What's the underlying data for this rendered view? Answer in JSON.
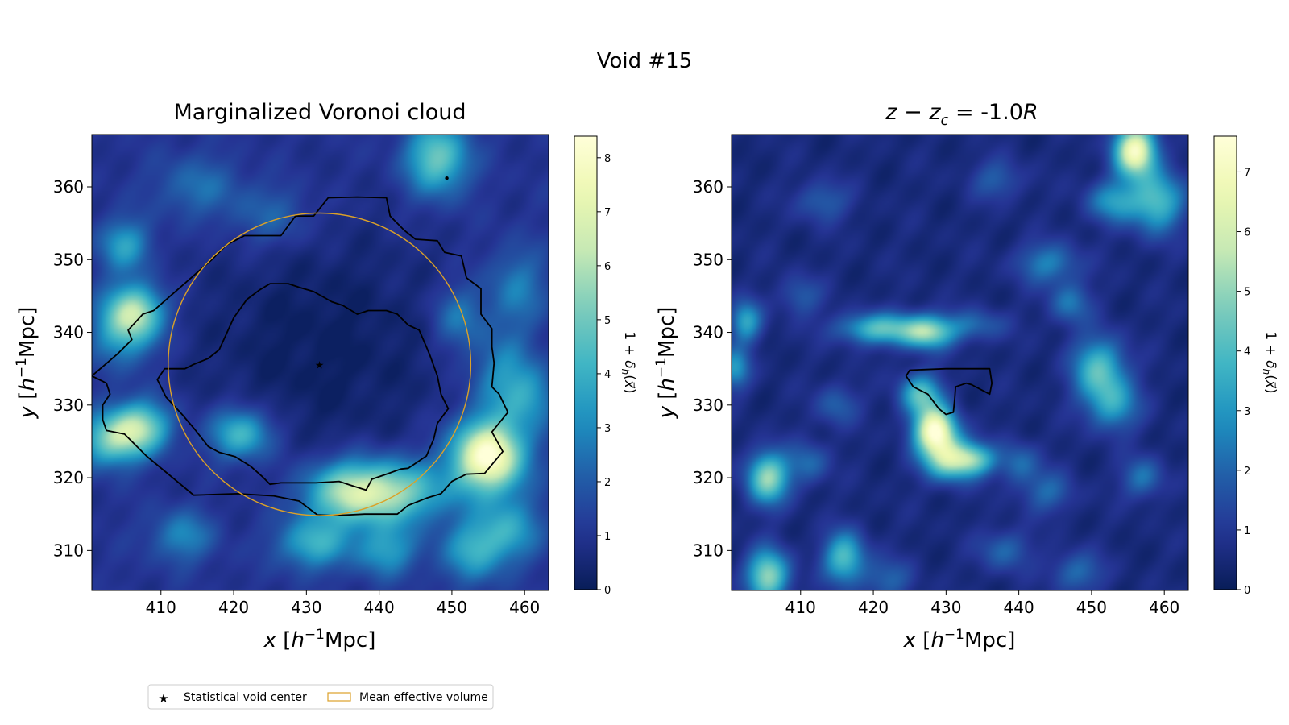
{
  "figure": {
    "suptitle": "Void #15"
  },
  "legend": {
    "star_label": "Statistical void center",
    "circle_label": "Mean effective volume",
    "star_color": "#e8a020",
    "circle_color": "#dba128"
  },
  "colormap": {
    "name": "YlGnBu",
    "stops": [
      "#081d58",
      "#253494",
      "#225ea8",
      "#1d91c0",
      "#41b6c4",
      "#7fcdbb",
      "#c7e9b4",
      "#edf8b1",
      "#ffffd9"
    ]
  },
  "chart_data": [
    {
      "type": "heatmap",
      "title": "Marginalized Voronoi cloud",
      "xlabel": "x [h⁻¹Mpc]",
      "ylabel": "y [h⁻¹Mpc]",
      "xlim": [
        400.5,
        463.3
      ],
      "ylim": [
        304.5,
        367.2
      ],
      "xticks": [
        410,
        420,
        430,
        440,
        450,
        460
      ],
      "yticks": [
        310,
        320,
        330,
        340,
        350,
        360
      ],
      "colorbar": {
        "label": "1 + δh(x⃗)",
        "range": [
          0,
          8.4
        ],
        "ticks": [
          0,
          1,
          2,
          3,
          4,
          5,
          6,
          7,
          8
        ]
      },
      "density_blobs": [
        {
          "x": 455,
          "y": 323,
          "sx": 3.5,
          "sy": 3.5,
          "amp": 7.5
        },
        {
          "x": 436,
          "y": 318,
          "sx": 4.5,
          "sy": 3,
          "amp": 4.5
        },
        {
          "x": 443,
          "y": 318,
          "sx": 5,
          "sy": 3,
          "amp": 3.5
        },
        {
          "x": 407,
          "y": 327,
          "sx": 3,
          "sy": 2.5,
          "amp": 4.5
        },
        {
          "x": 403,
          "y": 325,
          "sx": 3,
          "sy": 2.5,
          "amp": 3.5
        },
        {
          "x": 421,
          "y": 326,
          "sx": 3,
          "sy": 2.5,
          "amp": 3.5
        },
        {
          "x": 405,
          "y": 341,
          "sx": 3,
          "sy": 3.5,
          "amp": 3.5
        },
        {
          "x": 407,
          "y": 343,
          "sx": 2.5,
          "sy": 2.5,
          "amp": 3.0
        },
        {
          "x": 448,
          "y": 364,
          "sx": 3,
          "sy": 3.5,
          "amp": 4.0
        },
        {
          "x": 405,
          "y": 352,
          "sx": 2.5,
          "sy": 2.5,
          "amp": 2.6
        },
        {
          "x": 431,
          "y": 311,
          "sx": 3.5,
          "sy": 2.5,
          "amp": 3.0
        },
        {
          "x": 441,
          "y": 310,
          "sx": 3,
          "sy": 2.5,
          "amp": 2.5
        },
        {
          "x": 453,
          "y": 310,
          "sx": 3,
          "sy": 3,
          "amp": 2.8
        },
        {
          "x": 458,
          "y": 313,
          "sx": 3,
          "sy": 3,
          "amp": 2.5
        },
        {
          "x": 413,
          "y": 312,
          "sx": 3,
          "sy": 2.5,
          "amp": 2.0
        },
        {
          "x": 451,
          "y": 342,
          "sx": 2.5,
          "sy": 3,
          "amp": 1.8
        },
        {
          "x": 459,
          "y": 346,
          "sx": 3,
          "sy": 4,
          "amp": 1.8
        },
        {
          "x": 415,
          "y": 360,
          "sx": 4,
          "sy": 3,
          "amp": 1.5
        },
        {
          "x": 425,
          "y": 356,
          "sx": 4,
          "sy": 3,
          "amp": 1.3
        },
        {
          "x": 457,
          "y": 334,
          "sx": 3,
          "sy": 4,
          "amp": 2.2
        },
        {
          "x": 461,
          "y": 331,
          "sx": 2.5,
          "sy": 3,
          "amp": 2.0
        }
      ],
      "background_level": 1.0,
      "center_depression": {
        "x": 432,
        "y": 338,
        "sx": 13,
        "sy": 12,
        "depth": 0.85
      },
      "contours": [
        [
          [
            400.5,
            334
          ],
          [
            404,
            337
          ],
          [
            406,
            339
          ],
          [
            405.5,
            340.3
          ],
          [
            407.5,
            342.5
          ],
          [
            409,
            343
          ],
          [
            413,
            346.5
          ],
          [
            417,
            350
          ],
          [
            419,
            352
          ],
          [
            421.5,
            353.3
          ],
          [
            426.5,
            353.3
          ],
          [
            428.5,
            356
          ],
          [
            431,
            356
          ],
          [
            433,
            358.5
          ],
          [
            437,
            358.6
          ],
          [
            441,
            358.5
          ],
          [
            441.5,
            356
          ],
          [
            443.5,
            354
          ],
          [
            445,
            352.8
          ],
          [
            448,
            352.6
          ],
          [
            449,
            351
          ],
          [
            451.3,
            350.5
          ],
          [
            452,
            347.5
          ],
          [
            454,
            346
          ],
          [
            454,
            342.5
          ],
          [
            455.5,
            340.5
          ],
          [
            455.5,
            338
          ],
          [
            455.8,
            335.8
          ],
          [
            455.5,
            332.5
          ],
          [
            456.5,
            331.5
          ],
          [
            457.7,
            329
          ],
          [
            455.5,
            326.3
          ],
          [
            457,
            323.6
          ],
          [
            454.5,
            320.6
          ],
          [
            452,
            320.5
          ],
          [
            450,
            319.5
          ],
          [
            448.5,
            317.8
          ],
          [
            446.5,
            317.2
          ],
          [
            444,
            316.2
          ],
          [
            442.5,
            315
          ],
          [
            438,
            315
          ],
          [
            434,
            314.8
          ],
          [
            431.5,
            314.9
          ],
          [
            429,
            316.8
          ],
          [
            425.5,
            317.5
          ],
          [
            420.5,
            317.8
          ],
          [
            414.5,
            317.6
          ],
          [
            408,
            323
          ],
          [
            405,
            326
          ],
          [
            402.5,
            326.5
          ],
          [
            402,
            328
          ],
          [
            402,
            330
          ],
          [
            403,
            331.5
          ],
          [
            402.5,
            333
          ],
          [
            400.5,
            334
          ]
        ],
        [
          [
            420,
            342
          ],
          [
            421.8,
            344.5
          ],
          [
            423.5,
            345.8
          ],
          [
            425,
            346.7
          ],
          [
            427.5,
            346.7
          ],
          [
            429,
            346.2
          ],
          [
            431,
            345.6
          ],
          [
            433.5,
            344.2
          ],
          [
            435,
            343.7
          ],
          [
            437,
            342.5
          ],
          [
            438.5,
            343
          ],
          [
            441,
            343
          ],
          [
            442.5,
            342.5
          ],
          [
            444,
            341
          ],
          [
            445.5,
            340.3
          ],
          [
            446.5,
            338
          ],
          [
            447,
            336.8
          ],
          [
            448,
            334
          ],
          [
            448.5,
            331.5
          ],
          [
            449.5,
            329.5
          ],
          [
            448,
            327.5
          ],
          [
            447.5,
            325.3
          ],
          [
            446.5,
            323
          ],
          [
            444,
            321.3
          ],
          [
            443,
            321.2
          ],
          [
            441,
            320.5
          ],
          [
            439,
            319.8
          ],
          [
            438.2,
            318.3
          ],
          [
            436,
            319
          ],
          [
            434.5,
            319.5
          ],
          [
            431.3,
            319.3
          ],
          [
            429,
            319.3
          ],
          [
            426.5,
            319.3
          ],
          [
            425,
            319.1
          ],
          [
            424,
            320.1
          ],
          [
            422.3,
            321.6
          ],
          [
            420.2,
            322.9
          ],
          [
            418,
            323.5
          ],
          [
            416.5,
            324.3
          ],
          [
            414.7,
            326.6
          ],
          [
            413,
            328.6
          ],
          [
            410.7,
            331.1
          ],
          [
            409.5,
            333.5
          ],
          [
            410.5,
            335
          ],
          [
            413.3,
            335
          ],
          [
            414.5,
            335.6
          ],
          [
            416.5,
            336.4
          ],
          [
            418,
            337.6
          ],
          [
            420,
            342
          ]
        ]
      ],
      "circle": {
        "x": 431.8,
        "y": 335.6,
        "r": 20.8
      },
      "star": {
        "x": 431.8,
        "y": 335.6
      },
      "dot": {
        "x": 449.3,
        "y": 361.2
      }
    },
    {
      "type": "heatmap",
      "title": "z − z_c = -1.0R",
      "xlabel": "x [h⁻¹Mpc]",
      "ylabel": "y [h⁻¹Mpc]",
      "xlim": [
        400.5,
        463.3
      ],
      "ylim": [
        304.5,
        367.2
      ],
      "xticks": [
        410,
        420,
        430,
        440,
        450,
        460
      ],
      "yticks": [
        310,
        320,
        330,
        340,
        350,
        360
      ],
      "colorbar": {
        "label": "1 + δh(x⃗)",
        "range": [
          0,
          7.6
        ],
        "ticks": [
          0,
          1,
          2,
          3,
          4,
          5,
          6,
          7
        ]
      },
      "density_blobs": [
        {
          "x": 428.5,
          "y": 326.5,
          "sx": 2,
          "sy": 2.2,
          "amp": 6.8
        },
        {
          "x": 430.5,
          "y": 322.5,
          "sx": 2.5,
          "sy": 2,
          "amp": 4.5
        },
        {
          "x": 426.5,
          "y": 331.5,
          "sx": 2,
          "sy": 2,
          "amp": 3.5
        },
        {
          "x": 434,
          "y": 322.5,
          "sx": 2,
          "sy": 1.5,
          "amp": 3.0
        },
        {
          "x": 421,
          "y": 340.5,
          "sx": 4,
          "sy": 1.5,
          "amp": 3.5
        },
        {
          "x": 427.5,
          "y": 340,
          "sx": 2.5,
          "sy": 1.6,
          "amp": 4.0
        },
        {
          "x": 434,
          "y": 341,
          "sx": 3,
          "sy": 1.5,
          "amp": 1.5
        },
        {
          "x": 402.5,
          "y": 341.5,
          "sx": 1.5,
          "sy": 2,
          "amp": 2.8
        },
        {
          "x": 401,
          "y": 335,
          "sx": 1.5,
          "sy": 2,
          "amp": 2.5
        },
        {
          "x": 405.5,
          "y": 320,
          "sx": 2,
          "sy": 2.5,
          "amp": 4.5
        },
        {
          "x": 405.5,
          "y": 306.5,
          "sx": 2,
          "sy": 2.5,
          "amp": 4.5
        },
        {
          "x": 416,
          "y": 309,
          "sx": 2,
          "sy": 2.5,
          "amp": 3.5
        },
        {
          "x": 451,
          "y": 335,
          "sx": 2.5,
          "sy": 3,
          "amp": 3.5
        },
        {
          "x": 453,
          "y": 330,
          "sx": 2.5,
          "sy": 2.5,
          "amp": 2.5
        },
        {
          "x": 456,
          "y": 365,
          "sx": 2,
          "sy": 2.5,
          "amp": 6.5
        },
        {
          "x": 459,
          "y": 358,
          "sx": 2.5,
          "sy": 3,
          "amp": 3.5
        },
        {
          "x": 453,
          "y": 358,
          "sx": 2.5,
          "sy": 2,
          "amp": 2.5
        },
        {
          "x": 444,
          "y": 349.5,
          "sx": 3,
          "sy": 2,
          "amp": 2.0
        },
        {
          "x": 447,
          "y": 344,
          "sx": 2,
          "sy": 2,
          "amp": 1.8
        },
        {
          "x": 440,
          "y": 322,
          "sx": 2,
          "sy": 2,
          "amp": 1.6
        },
        {
          "x": 444,
          "y": 318,
          "sx": 2.5,
          "sy": 2,
          "amp": 1.5
        },
        {
          "x": 457,
          "y": 320,
          "sx": 2,
          "sy": 2,
          "amp": 1.8
        },
        {
          "x": 411,
          "y": 322,
          "sx": 2,
          "sy": 2,
          "amp": 1.6
        },
        {
          "x": 415,
          "y": 330,
          "sx": 2,
          "sy": 2,
          "amp": 1.4
        },
        {
          "x": 438,
          "y": 310,
          "sx": 2.5,
          "sy": 2,
          "amp": 1.5
        },
        {
          "x": 448,
          "y": 307,
          "sx": 2.5,
          "sy": 2,
          "amp": 1.6
        },
        {
          "x": 422,
          "y": 306,
          "sx": 2.5,
          "sy": 2,
          "amp": 1.4
        },
        {
          "x": 413,
          "y": 358,
          "sx": 2.5,
          "sy": 2,
          "amp": 1.4
        },
        {
          "x": 437,
          "y": 361,
          "sx": 2.5,
          "sy": 2,
          "amp": 1.3
        },
        {
          "x": 410,
          "y": 345,
          "sx": 2,
          "sy": 2,
          "amp": 1.3
        }
      ],
      "background_level": 0.55,
      "contours": [
        [
          [
            424.5,
            334
          ],
          [
            425.5,
            332.5
          ],
          [
            427.5,
            331.5
          ],
          [
            429,
            329.5
          ],
          [
            430,
            328.7
          ],
          [
            431,
            329
          ],
          [
            431.2,
            331
          ],
          [
            431.3,
            332.5
          ],
          [
            432.8,
            333
          ],
          [
            433.5,
            332.8
          ],
          [
            436,
            331.5
          ],
          [
            436.3,
            333
          ],
          [
            436,
            335
          ],
          [
            430,
            335
          ],
          [
            425,
            334.8
          ],
          [
            424.5,
            334
          ]
        ]
      ]
    }
  ]
}
